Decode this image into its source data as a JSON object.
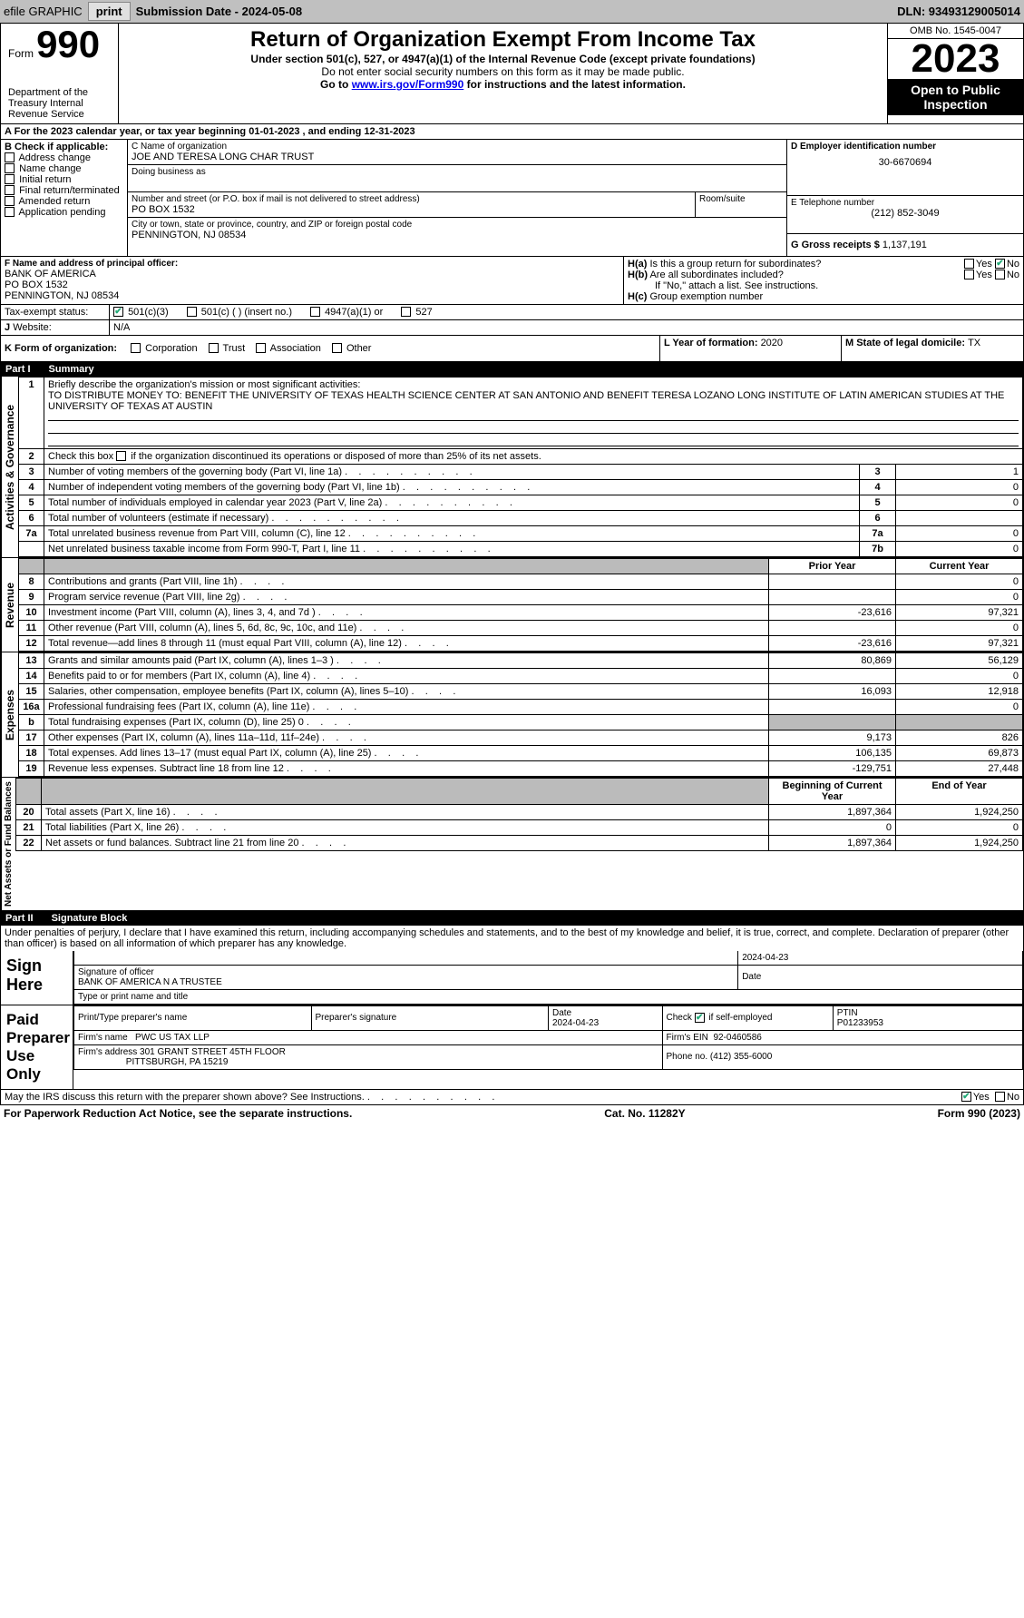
{
  "topbar": {
    "efile": "efile GRAPHIC",
    "print": "print",
    "submission": "Submission Date - 2024-05-08",
    "dln": "DLN: 93493129005014"
  },
  "header": {
    "form": "Form",
    "number": "990",
    "dept": "Department of the Treasury Internal Revenue Service",
    "title": "Return of Organization Exempt From Income Tax",
    "sub1": "Under section 501(c), 527, or 4947(a)(1) of the Internal Revenue Code (except private foundations)",
    "sub2": "Do not enter social security numbers on this form as it may be made public.",
    "sub3_pre": "Go to ",
    "sub3_link": "www.irs.gov/Form990",
    "sub3_post": " for instructions and the latest information.",
    "omb": "OMB No. 1545-0047",
    "year": "2023",
    "open": "Open to Public Inspection"
  },
  "sectionA": {
    "text_pre": "For the 2023 calendar year, or tax year beginning ",
    "begin": "01-01-2023",
    "mid": " , and ending ",
    "end": "12-31-2023"
  },
  "boxB": {
    "label": "B Check if applicable:",
    "items": [
      "Address change",
      "Name change",
      "Initial return",
      "Final return/terminated",
      "Amended return",
      "Application pending"
    ]
  },
  "boxC": {
    "label": "C Name of organization",
    "name": "JOE AND TERESA LONG CHAR TRUST",
    "dba": "Doing business as",
    "street_label": "Number and street (or P.O. box if mail is not delivered to street address)",
    "street": "PO BOX 1532",
    "room": "Room/suite",
    "city_label": "City or town, state or province, country, and ZIP or foreign postal code",
    "city": "PENNINGTON, NJ  08534"
  },
  "boxD": {
    "label": "D Employer identification number",
    "value": "30-6670694"
  },
  "boxE": {
    "label": "E Telephone number",
    "value": "(212) 852-3049"
  },
  "boxG": {
    "label": "G Gross receipts $ ",
    "value": "1,137,191"
  },
  "boxF": {
    "label": "F  Name and address of principal officer:",
    "line1": "BANK OF AMERICA",
    "line2": "PO BOX 1532",
    "line3": "PENNINGTON, NJ  08534"
  },
  "boxH": {
    "a": "Is this a group return for subordinates?",
    "b": "Are all subordinates included?",
    "note": "If \"No,\" attach a list. See instructions.",
    "c": "Group exemption number"
  },
  "boxI": {
    "label": "Tax-exempt status:",
    "opts": [
      "501(c)(3)",
      "501(c) (  ) (insert no.)",
      "4947(a)(1) or",
      "527"
    ]
  },
  "boxJ": {
    "label": "Website:",
    "value": "N/A"
  },
  "boxK": {
    "label": "K Form of organization:",
    "opts": [
      "Corporation",
      "Trust",
      "Association",
      "Other"
    ]
  },
  "boxL": {
    "label": "L Year of formation: ",
    "value": "2020"
  },
  "boxM": {
    "label": "M State of legal domicile: ",
    "value": "TX"
  },
  "yesno": {
    "yes": "Yes",
    "no": "No"
  },
  "part1": {
    "label": "Part I",
    "title": "Summary"
  },
  "vert": {
    "a": "Activities & Governance",
    "b": "Revenue",
    "c": "Expenses",
    "d": "Net Assets or Fund Balances"
  },
  "q1": {
    "label": "Briefly describe the organization's mission or most significant activities:",
    "text": "TO DISTRIBUTE MONEY TO: BENEFIT THE UNIVERSITY OF TEXAS HEALTH SCIENCE CENTER AT SAN ANTONIO AND BENEFIT TERESA LOZANO LONG INSTITUTE OF LATIN AMERICAN STUDIES AT THE UNIVERSITY OF TEXAS AT AUSTIN"
  },
  "q2": "Check this box        if the organization discontinued its operations or disposed of more than 25% of its net assets.",
  "gov_lines": [
    {
      "n": "3",
      "t": "Number of voting members of the governing body (Part VI, line 1a)",
      "rn": "3",
      "v": "1"
    },
    {
      "n": "4",
      "t": "Number of independent voting members of the governing body (Part VI, line 1b)",
      "rn": "4",
      "v": "0"
    },
    {
      "n": "5",
      "t": "Total number of individuals employed in calendar year 2023 (Part V, line 2a)",
      "rn": "5",
      "v": "0"
    },
    {
      "n": "6",
      "t": "Total number of volunteers (estimate if necessary)",
      "rn": "6",
      "v": ""
    },
    {
      "n": "7a",
      "t": "Total unrelated business revenue from Part VIII, column (C), line 12",
      "rn": "7a",
      "v": "0"
    },
    {
      "n": "",
      "t": "Net unrelated business taxable income from Form 990-T, Part I, line 11",
      "rn": "7b",
      "v": "0"
    }
  ],
  "hdr_prior": "Prior Year",
  "hdr_curr": "Current Year",
  "rev_lines": [
    {
      "n": "8",
      "t": "Contributions and grants (Part VIII, line 1h)",
      "p": "",
      "c": "0"
    },
    {
      "n": "9",
      "t": "Program service revenue (Part VIII, line 2g)",
      "p": "",
      "c": "0"
    },
    {
      "n": "10",
      "t": "Investment income (Part VIII, column (A), lines 3, 4, and 7d )",
      "p": "-23,616",
      "c": "97,321"
    },
    {
      "n": "11",
      "t": "Other revenue (Part VIII, column (A), lines 5, 6d, 8c, 9c, 10c, and 11e)",
      "p": "",
      "c": "0"
    },
    {
      "n": "12",
      "t": "Total revenue—add lines 8 through 11 (must equal Part VIII, column (A), line 12)",
      "p": "-23,616",
      "c": "97,321"
    }
  ],
  "exp_lines": [
    {
      "n": "13",
      "t": "Grants and similar amounts paid (Part IX, column (A), lines 1–3 )",
      "p": "80,869",
      "c": "56,129"
    },
    {
      "n": "14",
      "t": "Benefits paid to or for members (Part IX, column (A), line 4)",
      "p": "",
      "c": "0"
    },
    {
      "n": "15",
      "t": "Salaries, other compensation, employee benefits (Part IX, column (A), lines 5–10)",
      "p": "16,093",
      "c": "12,918"
    },
    {
      "n": "16a",
      "t": "Professional fundraising fees (Part IX, column (A), line 11e)",
      "p": "",
      "c": "0"
    },
    {
      "n": "b",
      "t": "Total fundraising expenses (Part IX, column (D), line 25) 0",
      "p": "grey",
      "c": "grey"
    },
    {
      "n": "17",
      "t": "Other expenses (Part IX, column (A), lines 11a–11d, 11f–24e)",
      "p": "9,173",
      "c": "826"
    },
    {
      "n": "18",
      "t": "Total expenses. Add lines 13–17 (must equal Part IX, column (A), line 25)",
      "p": "106,135",
      "c": "69,873"
    },
    {
      "n": "19",
      "t": "Revenue less expenses. Subtract line 18 from line 12",
      "p": "-129,751",
      "c": "27,448"
    }
  ],
  "hdr_begin": "Beginning of Current Year",
  "hdr_end": "End of Year",
  "net_lines": [
    {
      "n": "20",
      "t": "Total assets (Part X, line 16)",
      "p": "1,897,364",
      "c": "1,924,250"
    },
    {
      "n": "21",
      "t": "Total liabilities (Part X, line 26)",
      "p": "0",
      "c": "0"
    },
    {
      "n": "22",
      "t": "Net assets or fund balances. Subtract line 21 from line 20",
      "p": "1,897,364",
      "c": "1,924,250"
    }
  ],
  "part2": {
    "label": "Part II",
    "title": "Signature Block"
  },
  "perjury": "Under penalties of perjury, I declare that I have examined this return, including accompanying schedules and statements, and to the best of my knowledge and belief, it is true, correct, and complete. Declaration of preparer (other than officer) is based on all information of which preparer has any knowledge.",
  "sign": {
    "here": "Sign Here",
    "sig_off": "Signature of officer",
    "off_name": "BANK OF AMERICA N A  TRUSTEE",
    "type_name": "Type or print name and title",
    "date_lbl": "Date",
    "date": "2024-04-23"
  },
  "paid": {
    "label": "Paid Preparer Use Only",
    "print_name": "Print/Type preparer's name",
    "prep_sig": "Preparer's signature",
    "date": "2024-04-23",
    "check": "Check        if self-employed",
    "ptin_lbl": "PTIN",
    "ptin": "P01233953",
    "firm_name_lbl": "Firm's name",
    "firm_name": "PWC US TAX LLP",
    "firm_ein_lbl": "Firm's EIN",
    "firm_ein": "92-0460586",
    "firm_addr_lbl": "Firm's address",
    "firm_addr": "301 GRANT STREET 45TH FLOOR",
    "firm_city": "PITTSBURGH, PA  15219",
    "phone_lbl": "Phone no.",
    "phone": "(412) 355-6000"
  },
  "discuss": "May the IRS discuss this return with the preparer shown above? See Instructions.",
  "footer": {
    "left": "For Paperwork Reduction Act Notice, see the separate instructions.",
    "mid": "Cat. No. 11282Y",
    "right": "Form 990 (2023)"
  }
}
